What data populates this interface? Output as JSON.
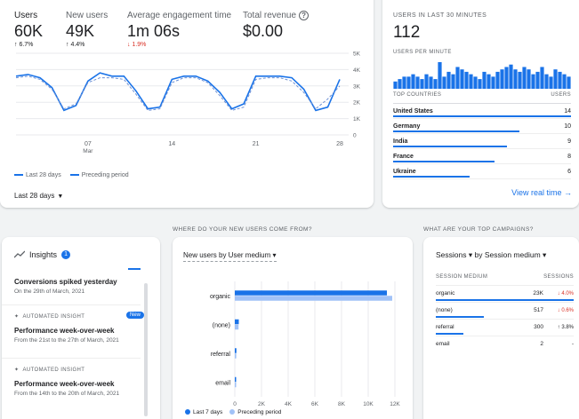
{
  "kpis": {
    "users": {
      "label": "Users",
      "value": "60K",
      "delta": "↑ 6.7%"
    },
    "new_users": {
      "label": "New users",
      "value": "49K",
      "delta": "↑ 4.4%"
    },
    "engagement": {
      "label": "Average engagement time",
      "value": "1m 06s",
      "delta": "↓ 1.9%"
    },
    "revenue": {
      "label": "Total revenue",
      "value": "$0.00",
      "help_icon": "?"
    }
  },
  "chart_data": [
    {
      "type": "line",
      "title": "Users",
      "x": [
        1,
        2,
        3,
        4,
        5,
        6,
        7,
        8,
        9,
        10,
        11,
        12,
        13,
        14,
        15,
        16,
        17,
        18,
        19,
        20,
        21,
        22,
        23,
        24,
        25,
        26,
        27,
        28
      ],
      "series": [
        {
          "name": "Last 28 days",
          "style": "solid",
          "values": [
            3.6,
            3.7,
            3.5,
            2.9,
            1.5,
            1.8,
            3.3,
            3.8,
            3.6,
            3.6,
            2.7,
            1.6,
            1.7,
            3.4,
            3.6,
            3.6,
            3.3,
            2.6,
            1.6,
            1.9,
            3.6,
            3.6,
            3.6,
            3.5,
            2.8,
            1.5,
            1.7,
            3.4
          ]
        },
        {
          "name": "Preceding period",
          "style": "dashed",
          "values": [
            3.5,
            3.6,
            3.4,
            2.8,
            1.6,
            1.9,
            3.2,
            3.5,
            3.5,
            3.4,
            2.5,
            1.5,
            1.6,
            3.2,
            3.5,
            3.5,
            3.2,
            2.4,
            1.5,
            1.7,
            3.4,
            3.5,
            3.5,
            3.3,
            2.6,
            1.6,
            2.2,
            3.0
          ]
        }
      ],
      "ylim": [
        0,
        5
      ],
      "yticks": [
        "0",
        "1K",
        "2K",
        "3K",
        "4K",
        "5K"
      ],
      "xticks": [
        {
          "pos": 7,
          "label": "07",
          "sub": "Mar"
        },
        {
          "pos": 14,
          "label": "14"
        },
        {
          "pos": 21,
          "label": "21"
        },
        {
          "pos": 28,
          "label": "28"
        }
      ],
      "legend": [
        "Last 28 days",
        "Preceding period"
      ]
    },
    {
      "type": "bar",
      "title": "Users per minute",
      "values": [
        3,
        4,
        5,
        5,
        6,
        5,
        4,
        6,
        5,
        4,
        11,
        5,
        7,
        6,
        9,
        8,
        7,
        6,
        5,
        4,
        7,
        6,
        5,
        7,
        8,
        9,
        10,
        8,
        7,
        9,
        8,
        6,
        7,
        9,
        6,
        5,
        8,
        7,
        6,
        5
      ]
    },
    {
      "type": "bar",
      "orientation": "horizontal",
      "title": "New users by User medium",
      "categories": [
        "organic",
        "(none)",
        "referral",
        "email"
      ],
      "series": [
        {
          "name": "Last 7 days",
          "color": "#1a73e8",
          "values": [
            11400,
            300,
            120,
            10
          ]
        },
        {
          "name": "Preceding period",
          "color": "#a1c2f7",
          "values": [
            11800,
            280,
            110,
            8
          ]
        }
      ],
      "xlim": [
        0,
        12000
      ],
      "xticks": [
        "0",
        "2K",
        "4K",
        "6K",
        "8K",
        "10K",
        "12K"
      ]
    }
  ],
  "legend": {
    "current": "Last 28 days",
    "previous": "Preceding period"
  },
  "date_range": "Last 28 days",
  "realtime": {
    "heading": "USERS IN LAST 30 MINUTES",
    "value": "112",
    "per_minute_label": "USERS PER MINUTE",
    "table_header": {
      "left": "TOP COUNTRIES",
      "right": "USERS"
    },
    "rows": [
      {
        "name": "United States",
        "value": "14",
        "share": 1.0
      },
      {
        "name": "Germany",
        "value": "10",
        "share": 0.71
      },
      {
        "name": "India",
        "value": "9",
        "share": 0.64
      },
      {
        "name": "France",
        "value": "8",
        "share": 0.57
      },
      {
        "name": "Ukraine",
        "value": "6",
        "share": 0.43
      }
    ],
    "link": "View real time →"
  },
  "insights": {
    "title": "Insights",
    "badge": "1",
    "items": [
      {
        "title": "Conversions spiked yesterday",
        "sub": "On the 29th of March, 2021"
      },
      {
        "tag": "AUTOMATED INSIGHT",
        "new": "New",
        "title": "Performance week-over-week",
        "sub": "From the 21st to the 27th of March, 2021"
      },
      {
        "tag": "AUTOMATED INSIGHT",
        "title": "Performance week-over-week",
        "sub": "From the 14th to the 20th of March, 2021"
      }
    ]
  },
  "new_users": {
    "section": "WHERE DO YOUR NEW USERS COME FROM?",
    "title": "New users by User medium ▾",
    "legend_current": "Last 7 days",
    "legend_previous": "Preceding period"
  },
  "campaigns": {
    "section": "WHAT ARE YOUR TOP CAMPAIGNS?",
    "title": "Sessions ▾  by Session medium ▾",
    "header": {
      "left": "SESSION MEDIUM",
      "right": "SESSIONS"
    },
    "rows": [
      {
        "name": "organic",
        "value": "23K",
        "change": "↓ 4.0%",
        "dir": "down",
        "share": 1.0
      },
      {
        "name": "(none)",
        "value": "517",
        "change": "↓ 0.6%",
        "dir": "down",
        "share": 0.35
      },
      {
        "name": "referral",
        "value": "300",
        "change": "↑ 3.8%",
        "dir": "up",
        "share": 0.2
      },
      {
        "name": "email",
        "value": "2",
        "change": "-",
        "dir": "none",
        "share": 0
      }
    ]
  },
  "colors": {
    "accent": "#1a73e8",
    "accent_light": "#a1c2f7",
    "negative": "#d93025"
  }
}
